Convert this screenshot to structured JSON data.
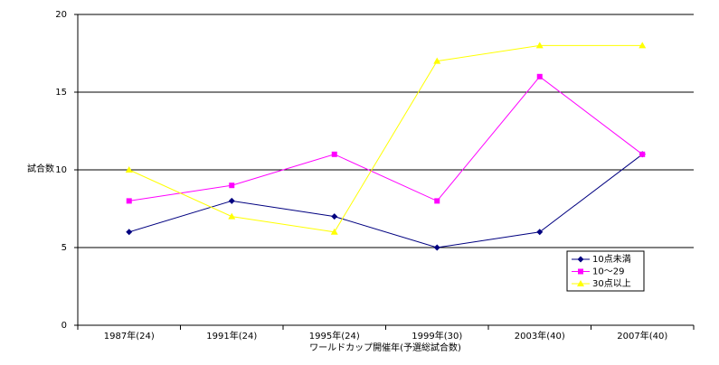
{
  "chart_data": {
    "type": "line",
    "title": "",
    "xlabel": "ワールドカップ開催年(予選総試合数)",
    "ylabel": "試合数",
    "categories": [
      "1987年(24)",
      "1991年(24)",
      "1995年(24)",
      "1999年(30)",
      "2003年(40)",
      "2007年(40)"
    ],
    "ylim": [
      0,
      20
    ],
    "yticks": [
      "0",
      "5",
      "10",
      "15",
      "20"
    ],
    "grid": true,
    "legend_position": "bottom-right",
    "series": [
      {
        "name": "10点未満",
        "values": [
          6,
          8,
          7,
          5,
          6,
          11
        ],
        "color": "#000080",
        "marker": "diamond"
      },
      {
        "name": "10～29",
        "values": [
          8,
          9,
          11,
          8,
          16,
          11
        ],
        "color": "#FF00FF",
        "marker": "square"
      },
      {
        "name": "30点以上",
        "values": [
          10,
          7,
          6,
          17,
          18,
          18
        ],
        "color": "#FFFF00",
        "marker": "triangle"
      }
    ]
  }
}
